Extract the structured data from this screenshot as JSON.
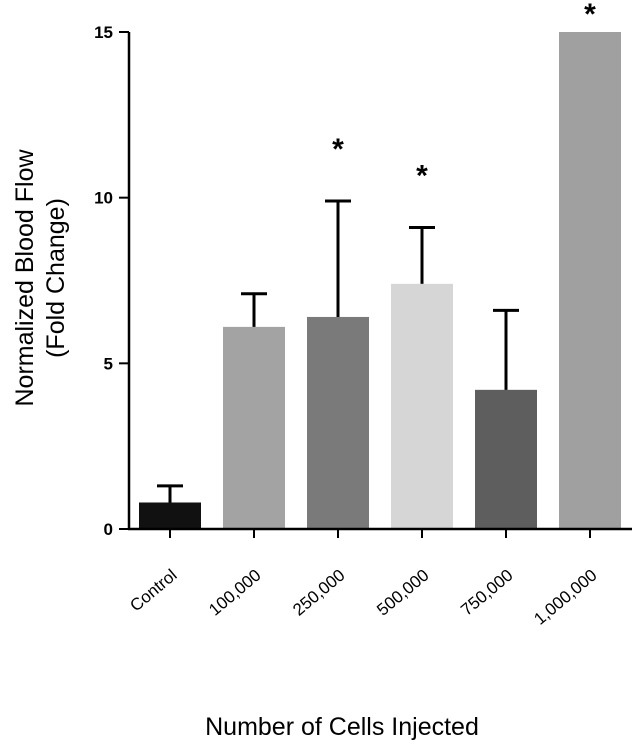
{
  "chart_data": {
    "type": "bar",
    "title": "",
    "xlabel": "Number of Cells Injected",
    "ylabel_line1": "Normalized Blood Flow",
    "ylabel_line2": "(Fold Change)",
    "ylim": [
      0,
      15
    ],
    "yticks": [
      0,
      5,
      10,
      15
    ],
    "categories": [
      "Control",
      "100,000",
      "250,000",
      "500,000",
      "750,000",
      "1,000,000"
    ],
    "values": [
      0.8,
      6.1,
      6.4,
      7.4,
      4.2,
      15.0
    ],
    "error_upper": [
      1.3,
      7.1,
      9.9,
      9.1,
      6.6,
      15.0
    ],
    "significance": [
      "",
      "",
      "*",
      "*",
      "",
      "*"
    ],
    "colors": [
      "#111111",
      "#a3a3a3",
      "#7a7a7a",
      "#d6d6d6",
      "#5e5e5e",
      "#a0a0a0"
    ],
    "grid": false,
    "legend": "none"
  }
}
